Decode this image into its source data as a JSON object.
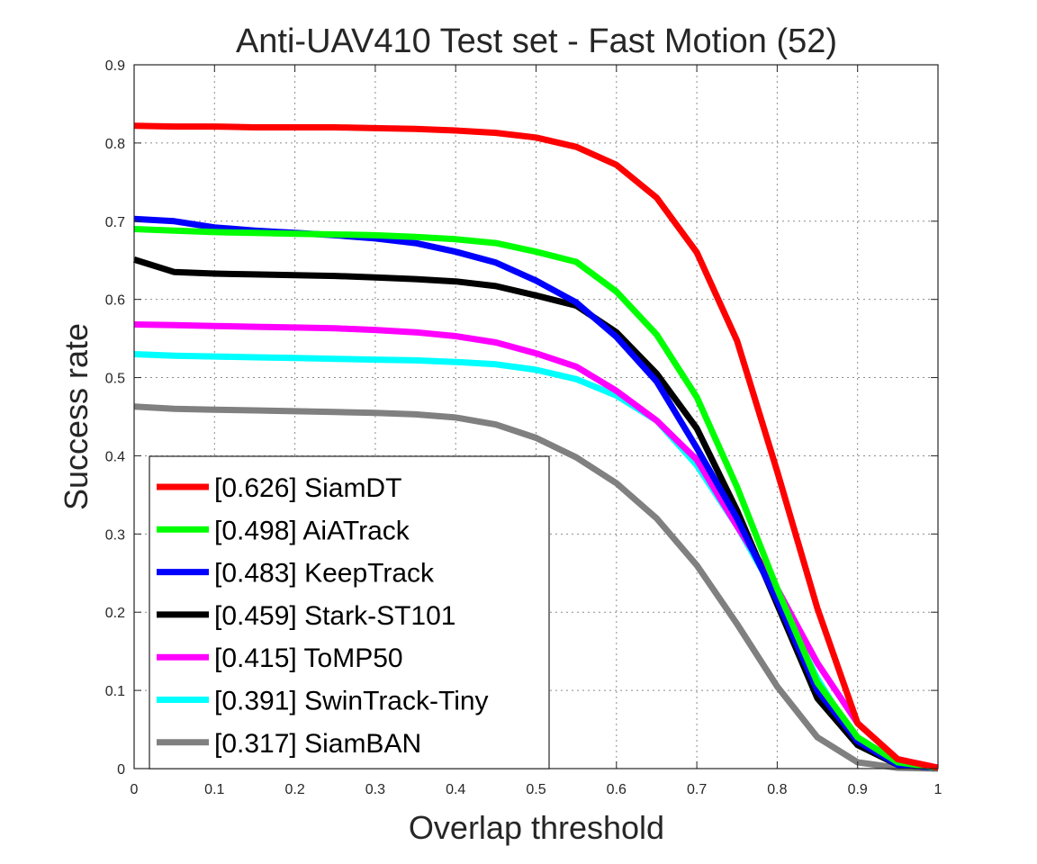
{
  "chart_data": {
    "type": "line",
    "title": "Anti-UAV410 Test set - Fast Motion (52)",
    "xlabel": "Overlap threshold",
    "ylabel": "Success rate",
    "xlim": [
      0,
      1
    ],
    "ylim": [
      0,
      0.9
    ],
    "x_ticks": [
      "0",
      "0.1",
      "0.2",
      "0.3",
      "0.4",
      "0.5",
      "0.6",
      "0.7",
      "0.8",
      "0.9",
      "1"
    ],
    "y_ticks": [
      "0",
      "0.1",
      "0.2",
      "0.3",
      "0.4",
      "0.5",
      "0.6",
      "0.7",
      "0.8",
      "0.9"
    ],
    "grid": true,
    "legend_position": "bottom-left",
    "x": [
      0,
      0.05,
      0.1,
      0.15,
      0.2,
      0.25,
      0.3,
      0.35,
      0.4,
      0.45,
      0.5,
      0.55,
      0.6,
      0.65,
      0.7,
      0.75,
      0.8,
      0.85,
      0.9,
      0.95,
      1.0
    ],
    "series": [
      {
        "name": "[0.626] SiamDT",
        "color": "#ff0000",
        "values": [
          0.822,
          0.821,
          0.821,
          0.82,
          0.82,
          0.82,
          0.819,
          0.818,
          0.816,
          0.813,
          0.807,
          0.795,
          0.772,
          0.73,
          0.66,
          0.547,
          0.38,
          0.205,
          0.058,
          0.012,
          0.001
        ]
      },
      {
        "name": "[0.498] AiATrack",
        "color": "#00ff00",
        "values": [
          0.69,
          0.688,
          0.686,
          0.685,
          0.684,
          0.683,
          0.682,
          0.68,
          0.677,
          0.672,
          0.661,
          0.648,
          0.61,
          0.555,
          0.475,
          0.36,
          0.23,
          0.11,
          0.04,
          0.008,
          0.001
        ]
      },
      {
        "name": "[0.483] KeepTrack",
        "color": "#0000ff",
        "values": [
          0.703,
          0.7,
          0.692,
          0.688,
          0.685,
          0.682,
          0.678,
          0.672,
          0.661,
          0.647,
          0.624,
          0.596,
          0.552,
          0.495,
          0.41,
          0.32,
          0.215,
          0.1,
          0.035,
          0.005,
          0.001
        ]
      },
      {
        "name": "[0.459] Stark-ST101",
        "color": "#000000",
        "values": [
          0.651,
          0.635,
          0.633,
          0.632,
          0.631,
          0.63,
          0.628,
          0.626,
          0.623,
          0.617,
          0.605,
          0.592,
          0.558,
          0.505,
          0.435,
          0.33,
          0.21,
          0.09,
          0.03,
          0.005,
          0.001
        ]
      },
      {
        "name": "[0.415] ToMP50",
        "color": "#ff00ff",
        "values": [
          0.568,
          0.567,
          0.566,
          0.565,
          0.564,
          0.563,
          0.561,
          0.558,
          0.553,
          0.545,
          0.531,
          0.514,
          0.483,
          0.445,
          0.395,
          0.31,
          0.23,
          0.135,
          0.058,
          0.012,
          0.001
        ]
      },
      {
        "name": "[0.391] SwinTrack-Tiny",
        "color": "#00ffff",
        "values": [
          0.53,
          0.528,
          0.527,
          0.526,
          0.525,
          0.524,
          0.523,
          0.522,
          0.52,
          0.517,
          0.51,
          0.498,
          0.477,
          0.445,
          0.388,
          0.31,
          0.22,
          0.115,
          0.032,
          0.006,
          0.001
        ]
      },
      {
        "name": "[0.317] SiamBAN",
        "color": "#808080",
        "values": [
          0.463,
          0.46,
          0.459,
          0.458,
          0.457,
          0.456,
          0.455,
          0.453,
          0.449,
          0.44,
          0.423,
          0.398,
          0.365,
          0.32,
          0.26,
          0.185,
          0.105,
          0.04,
          0.008,
          0.001,
          0.0
        ]
      }
    ]
  }
}
